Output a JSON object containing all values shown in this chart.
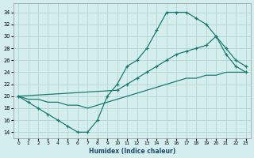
{
  "xlabel": "Humidex (Indice chaleur)",
  "bg_color": "#d4eeee",
  "grid_color": "#b8d8d8",
  "line_color": "#1a7a6e",
  "xlim": [
    -0.5,
    23.5
  ],
  "ylim": [
    13,
    35.5
  ],
  "yticks": [
    14,
    16,
    18,
    20,
    22,
    24,
    26,
    28,
    30,
    32,
    34
  ],
  "xticks": [
    0,
    1,
    2,
    3,
    4,
    5,
    6,
    7,
    8,
    9,
    10,
    11,
    12,
    13,
    14,
    15,
    16,
    17,
    18,
    19,
    20,
    21,
    22,
    23
  ],
  "line1_x": [
    0,
    1,
    2,
    3,
    4,
    5,
    6,
    7,
    8,
    9,
    10,
    11,
    12,
    13,
    14,
    15,
    16,
    17,
    18,
    19,
    20,
    21,
    22,
    23
  ],
  "line1_y": [
    20,
    19,
    18,
    17,
    16,
    15,
    14,
    14,
    16,
    20,
    22,
    25,
    26,
    28,
    31,
    34,
    34,
    34,
    33,
    32,
    30,
    27,
    25,
    24
  ],
  "line2_x": [
    0,
    10,
    11,
    12,
    13,
    14,
    15,
    16,
    17,
    18,
    19,
    20,
    21,
    22,
    23
  ],
  "line2_y": [
    20,
    21,
    22,
    23,
    24,
    25,
    26,
    27,
    27.5,
    28,
    28.5,
    30,
    28,
    26,
    25
  ],
  "line3_x": [
    0,
    1,
    2,
    3,
    4,
    5,
    6,
    7,
    8,
    9,
    10,
    11,
    12,
    13,
    14,
    15,
    16,
    17,
    18,
    19,
    20,
    21,
    22,
    23
  ],
  "line3_y": [
    20,
    19.5,
    19.5,
    19,
    19,
    18.5,
    18.5,
    18,
    18.5,
    19,
    19.5,
    20,
    20.5,
    21,
    21.5,
    22,
    22.5,
    23,
    23,
    23.5,
    23.5,
    24,
    24,
    24
  ]
}
